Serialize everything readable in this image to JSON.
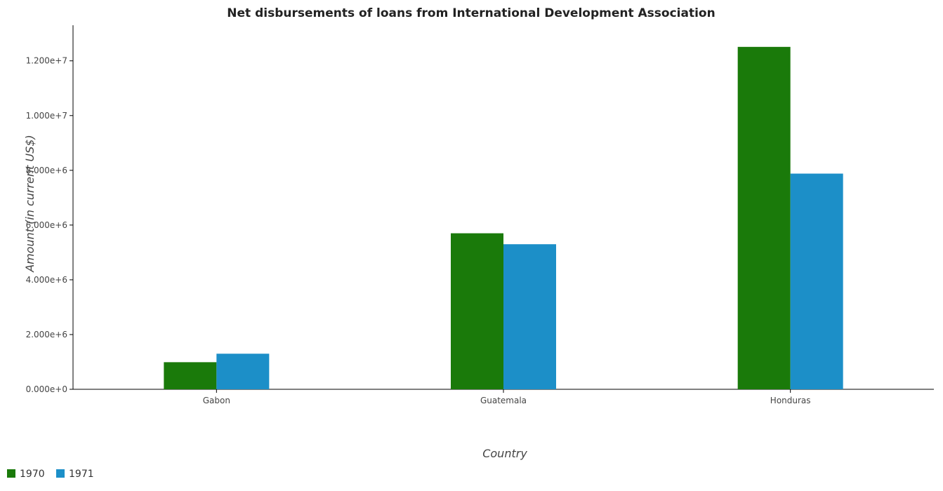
{
  "chart_data": {
    "type": "bar",
    "title": "Net disbursements of loans from International Development Association",
    "xlabel": "Country",
    "ylabel": "Amount (in current US$)",
    "categories": [
      "Gabon",
      "Guatemala",
      "Honduras"
    ],
    "series": [
      {
        "name": "1970",
        "color": "#1a7a0a",
        "values": [
          990000,
          5700000,
          12510000
        ]
      },
      {
        "name": "1971",
        "color": "#1c8fc8",
        "values": [
          1300000,
          5300000,
          7880000
        ]
      }
    ],
    "ylim": [
      0,
      13300000
    ],
    "yticks": [
      0,
      2000000,
      4000000,
      6000000,
      8000000,
      10000000,
      12000000
    ],
    "ytick_labels": [
      "0.000e+0",
      "2.000e+6",
      "4.000e+6",
      "6.000e+6",
      "8.000e+6",
      "1.000e+7",
      "1.200e+7"
    ],
    "grid": false,
    "legend_position": "bottom-left"
  }
}
